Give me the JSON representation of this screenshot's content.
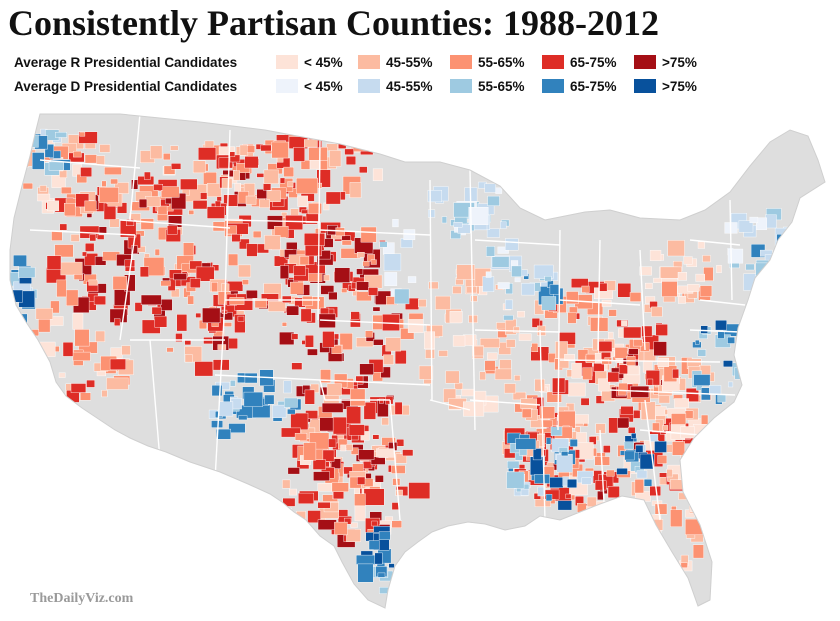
{
  "title": "Consistently Partisan Counties: 1988-2012",
  "legend": {
    "rows": [
      {
        "label": "Average R Presidential Candidates",
        "items": [
          {
            "text": "< 45%",
            "color": "#fde3d8"
          },
          {
            "text": "45-55%",
            "color": "#fcbba1"
          },
          {
            "text": "55-65%",
            "color": "#fc9272"
          },
          {
            "text": "65-75%",
            "color": "#de2d26"
          },
          {
            "text": ">75%",
            "color": "#a50f15"
          }
        ]
      },
      {
        "label": "Average D Presidential Candidates",
        "items": [
          {
            "text": "< 45%",
            "color": "#eef3fb"
          },
          {
            "text": "45-55%",
            "color": "#c6dbef"
          },
          {
            "text": "55-65%",
            "color": "#9ecae1"
          },
          {
            "text": "65-75%",
            "color": "#3182bd"
          },
          {
            "text": ">75%",
            "color": "#08519c"
          }
        ]
      }
    ]
  },
  "map": {
    "neutral_color": "#dedede",
    "border_color": "#ffffff"
  },
  "credit": "TheDailyViz.com"
}
